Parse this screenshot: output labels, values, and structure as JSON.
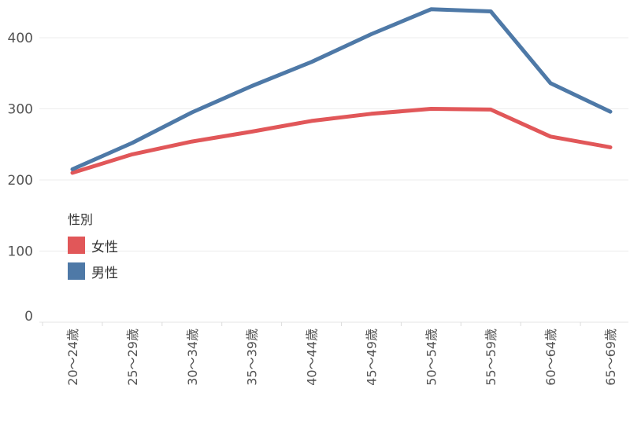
{
  "chart_data": {
    "type": "line",
    "categories": [
      "20～24歳",
      "25～29歳",
      "30～34歳",
      "35～39歳",
      "40～44歳",
      "45～49歳",
      "50～54歳",
      "55～59歳",
      "60～64歳",
      "65～69歳"
    ],
    "series": [
      {
        "name": "女性",
        "color": "#e15759",
        "values": [
          210,
          236,
          254,
          268,
          283,
          293,
          300,
          299,
          261,
          246
        ]
      },
      {
        "name": "男性",
        "color": "#4e79a7",
        "values": [
          215,
          252,
          295,
          332,
          366,
          405,
          440,
          437,
          336,
          296
        ]
      }
    ],
    "yticks": [
      0,
      100,
      200,
      300,
      400
    ],
    "ylim": [
      0,
      450
    ],
    "grid": "horizontal",
    "legend": {
      "title": "性別",
      "placement": "left-middle"
    }
  }
}
